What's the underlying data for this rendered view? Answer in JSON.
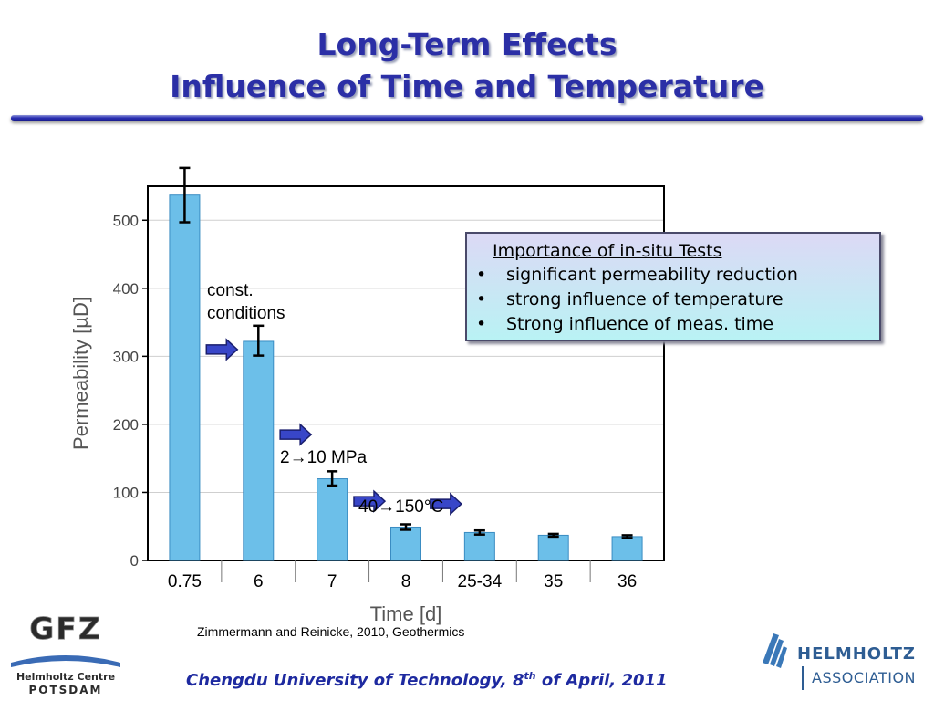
{
  "slide": {
    "title_line1": "Long-Term Effects",
    "title_line2": "Influence of Time and Temperature",
    "accent_color": "#2b2fa6"
  },
  "chart_data": {
    "type": "bar",
    "categories": [
      "0.75",
      "6",
      "7",
      "8",
      "25-34",
      "35",
      "36"
    ],
    "values": [
      537,
      322,
      120,
      49,
      41,
      37,
      35
    ],
    "error_low": [
      497,
      301,
      110,
      45,
      38,
      35,
      33
    ],
    "error_high": [
      577,
      345,
      131,
      53,
      44,
      39,
      37
    ],
    "xlabel": "Time [d]",
    "ylabel": "Permeability [µD]",
    "ylim": [
      0,
      550
    ],
    "yticks": [
      0,
      100,
      200,
      300,
      400,
      500
    ],
    "grid": true,
    "bar_color": "#6cbfe9",
    "annotations": [
      {
        "text_line1": "const.",
        "text_line2": "conditions"
      },
      {
        "text_a": "2",
        "text_b": "10 MPa"
      },
      {
        "text_a": "40",
        "text_b": "150°C"
      }
    ]
  },
  "infobox": {
    "heading": "Importance of in-situ Tests",
    "items": [
      "significant permeability reduction",
      "strong influence of temperature",
      "Strong influence of meas. time"
    ],
    "bullet": "•"
  },
  "citation": "Zimmermann and Reinicke, 2010, Geothermics",
  "footer": {
    "text_before": "Chengdu University of Technology, 8",
    "sup": "th",
    "text_after": " of April, 2011"
  },
  "logos": {
    "gfz_main": "GFZ",
    "gfz_line1": "Helmholtz Centre",
    "gfz_line2": "POTSDAM",
    "helmholtz_line1": "HELMHOLTZ",
    "helmholtz_line2": "ASSOCIATION"
  }
}
